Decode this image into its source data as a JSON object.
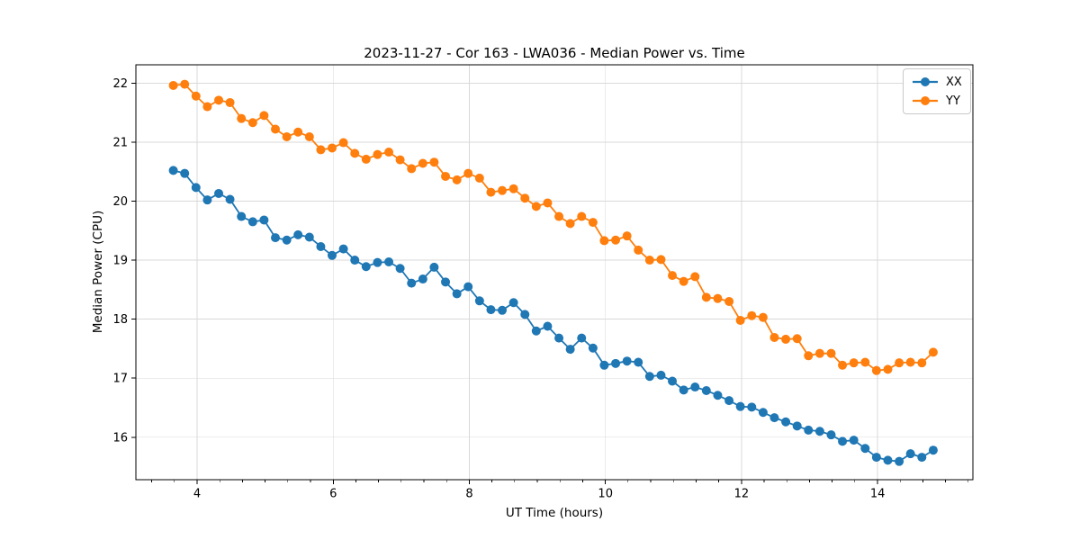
{
  "chart_data": {
    "type": "line",
    "title": "2023-11-27 - Cor 163 - LWA036 - Median Power vs. Time",
    "xlabel": "UT Time (hours)",
    "ylabel": "Median Power (CPU)",
    "xlim": [
      3.1,
      15.4
    ],
    "ylim": [
      15.28,
      22.31
    ],
    "xticks": [
      4,
      6,
      8,
      10,
      12,
      14
    ],
    "yticks": [
      16,
      17,
      18,
      19,
      20,
      21,
      22
    ],
    "x_minor_tick_step": 0.3333,
    "grid": true,
    "legend_position": "upper right",
    "marker": "o",
    "x": [
      3.65,
      3.817,
      3.983,
      4.15,
      4.317,
      4.483,
      4.65,
      4.817,
      4.983,
      5.15,
      5.317,
      5.483,
      5.65,
      5.817,
      5.983,
      6.15,
      6.317,
      6.483,
      6.65,
      6.817,
      6.983,
      7.15,
      7.317,
      7.483,
      7.65,
      7.817,
      7.983,
      8.15,
      8.317,
      8.483,
      8.65,
      8.817,
      8.983,
      9.15,
      9.317,
      9.483,
      9.65,
      9.817,
      9.983,
      10.15,
      10.317,
      10.483,
      10.65,
      10.817,
      10.983,
      11.15,
      11.317,
      11.483,
      11.65,
      11.817,
      11.983,
      12.15,
      12.317,
      12.483,
      12.65,
      12.817,
      12.983,
      13.15,
      13.317,
      13.483,
      13.65,
      13.817,
      13.983,
      14.15,
      14.317,
      14.483,
      14.65,
      14.817
    ],
    "series": [
      {
        "name": "XX",
        "color": "#1f77b4",
        "values": [
          20.52,
          20.47,
          20.23,
          20.02,
          20.13,
          20.03,
          19.74,
          19.65,
          19.68,
          19.38,
          19.34,
          19.43,
          19.39,
          19.23,
          19.08,
          19.19,
          19.0,
          18.89,
          18.96,
          18.97,
          18.86,
          18.61,
          18.68,
          18.88,
          18.63,
          18.43,
          18.55,
          18.31,
          18.16,
          18.15,
          18.28,
          18.08,
          17.8,
          17.88,
          17.68,
          17.49,
          17.68,
          17.51,
          17.22,
          17.25,
          17.29,
          17.27,
          17.03,
          17.05,
          16.95,
          16.8,
          16.85,
          16.79,
          16.71,
          16.62,
          16.52,
          16.51,
          16.42,
          16.33,
          16.26,
          16.19,
          16.12,
          16.1,
          16.04,
          15.93,
          15.95,
          15.81,
          15.66,
          15.61,
          15.59,
          15.72,
          15.66,
          15.78
        ]
      },
      {
        "name": "YY",
        "color": "#ff7f0e",
        "values": [
          21.96,
          21.98,
          21.78,
          21.6,
          21.71,
          21.67,
          21.4,
          21.33,
          21.45,
          21.22,
          21.09,
          21.17,
          21.09,
          20.87,
          20.9,
          20.99,
          20.81,
          20.71,
          20.79,
          20.83,
          20.7,
          20.55,
          20.64,
          20.66,
          20.42,
          20.36,
          20.47,
          20.39,
          20.15,
          20.18,
          20.21,
          20.05,
          19.91,
          19.97,
          19.74,
          19.62,
          19.74,
          19.64,
          19.33,
          19.34,
          19.41,
          19.17,
          19.0,
          19.01,
          18.74,
          18.64,
          18.72,
          18.37,
          18.35,
          18.3,
          17.98,
          18.06,
          18.03,
          17.69,
          17.66,
          17.67,
          17.38,
          17.42,
          17.42,
          17.22,
          17.26,
          17.27,
          17.13,
          17.15,
          17.26,
          17.27,
          17.26,
          17.44
        ]
      }
    ]
  },
  "colors": {
    "background": "#ffffff",
    "grid": "#d9d9d9",
    "spine": "#000000",
    "tick_text": "#000000"
  }
}
